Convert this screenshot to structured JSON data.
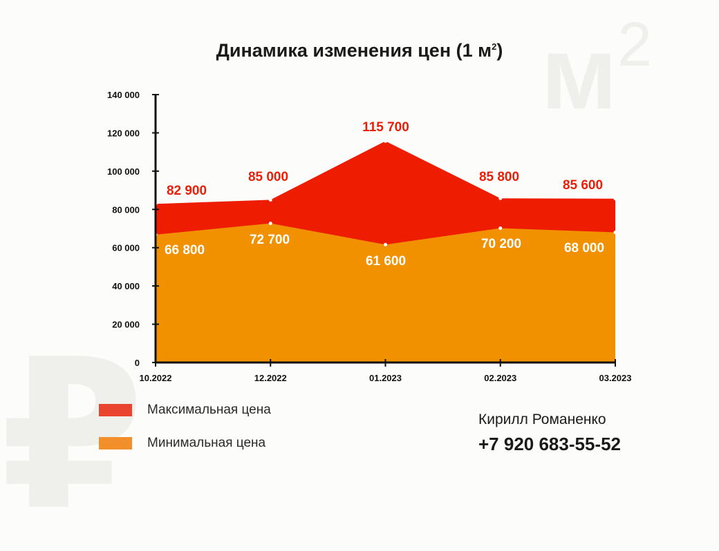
{
  "watermarks": {
    "m2_base": "м",
    "m2_exp": "2",
    "ruble": "₽"
  },
  "title": {
    "text": "Динамика изменения цен (1 м",
    "sup": "2",
    "close": ")"
  },
  "chart_data": {
    "type": "area",
    "categories": [
      "10.2022",
      "12.2022",
      "01.2023",
      "02.2023",
      "03.2023"
    ],
    "series": [
      {
        "name": "Максимальная цена",
        "values": [
          82900,
          85000,
          115700,
          85800,
          85600
        ],
        "labels": [
          "82 900",
          "85 000",
          "115 700",
          "85 800",
          "85 600"
        ],
        "color": "#ee1c00"
      },
      {
        "name": "Минимальная цена",
        "values": [
          66800,
          72700,
          61600,
          70200,
          68000
        ],
        "labels": [
          "66 800",
          "72 700",
          "61 600",
          "70 200",
          "68 000"
        ],
        "color": "#f29100"
      }
    ],
    "ylim": [
      0,
      140000
    ],
    "yticks": [
      0,
      20000,
      40000,
      60000,
      80000,
      100000,
      120000,
      140000
    ],
    "ytick_labels": [
      "0",
      "20 000",
      "40 000",
      "60 000",
      "80 000",
      "100 000",
      "120 000",
      "140 000"
    ],
    "grid": false,
    "legend_position": "bottom-left"
  },
  "legend": [
    {
      "label": "Максимальная цена",
      "color": "#e8442e"
    },
    {
      "label": "Минимальная цена",
      "color": "#f28f2a"
    }
  ],
  "contact": {
    "name": "Кирилл Романенко",
    "phone": "+7 920 683-55-52"
  }
}
